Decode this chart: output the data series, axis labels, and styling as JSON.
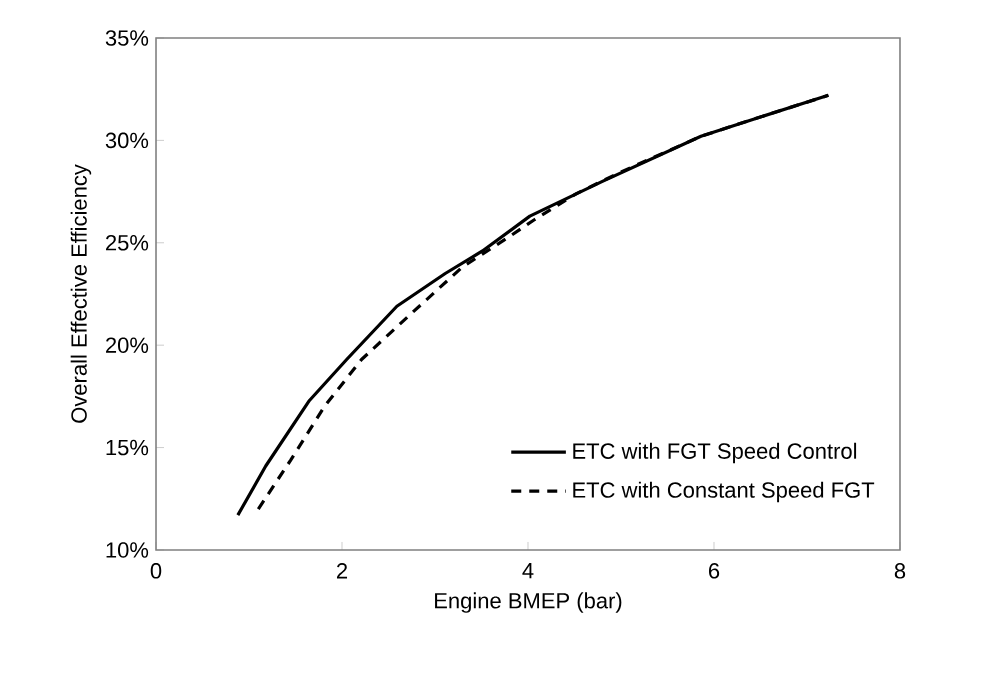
{
  "chart_data": {
    "type": "line",
    "xlabel": "Engine BMEP (bar)",
    "ylabel": "Overall Effective Efficiency",
    "xlim": [
      0,
      8
    ],
    "xticks": [
      0,
      2,
      4,
      6,
      8
    ],
    "ylim": [
      10,
      35
    ],
    "yticks": [
      {
        "value": 10,
        "label": "10%"
      },
      {
        "value": 15,
        "label": "15%"
      },
      {
        "value": 20,
        "label": "20%"
      },
      {
        "value": 25,
        "label": "25%"
      },
      {
        "value": 30,
        "label": "30%"
      },
      {
        "value": 35,
        "label": "35%"
      }
    ],
    "legend": "bottom right",
    "grid": false,
    "series": [
      {
        "name": "ETC with FGT Speed Control",
        "color": "#000000",
        "line_style": "solid",
        "x": [
          0.88,
          1.18,
          1.65,
          2.05,
          2.59,
          3.11,
          3.51,
          4.02,
          4.8,
          5.86,
          6.4,
          7.23
        ],
        "values": [
          11.7,
          14.1,
          17.3,
          19.3,
          21.9,
          23.5,
          24.6,
          26.3,
          28.0,
          30.2,
          31.0,
          32.2
        ]
      },
      {
        "name": "ETC with Constant Speed FGT",
        "color": "#000000",
        "line_style": "dashed",
        "x": [
          1.1,
          1.45,
          1.81,
          2.21,
          2.71,
          3.29,
          3.8,
          4.06,
          4.52,
          5.02,
          5.86,
          6.4,
          7.23
        ],
        "values": [
          12.0,
          14.4,
          17.0,
          19.3,
          21.4,
          23.8,
          25.3,
          26.1,
          27.4,
          28.5,
          30.2,
          31.0,
          32.2
        ]
      }
    ]
  }
}
